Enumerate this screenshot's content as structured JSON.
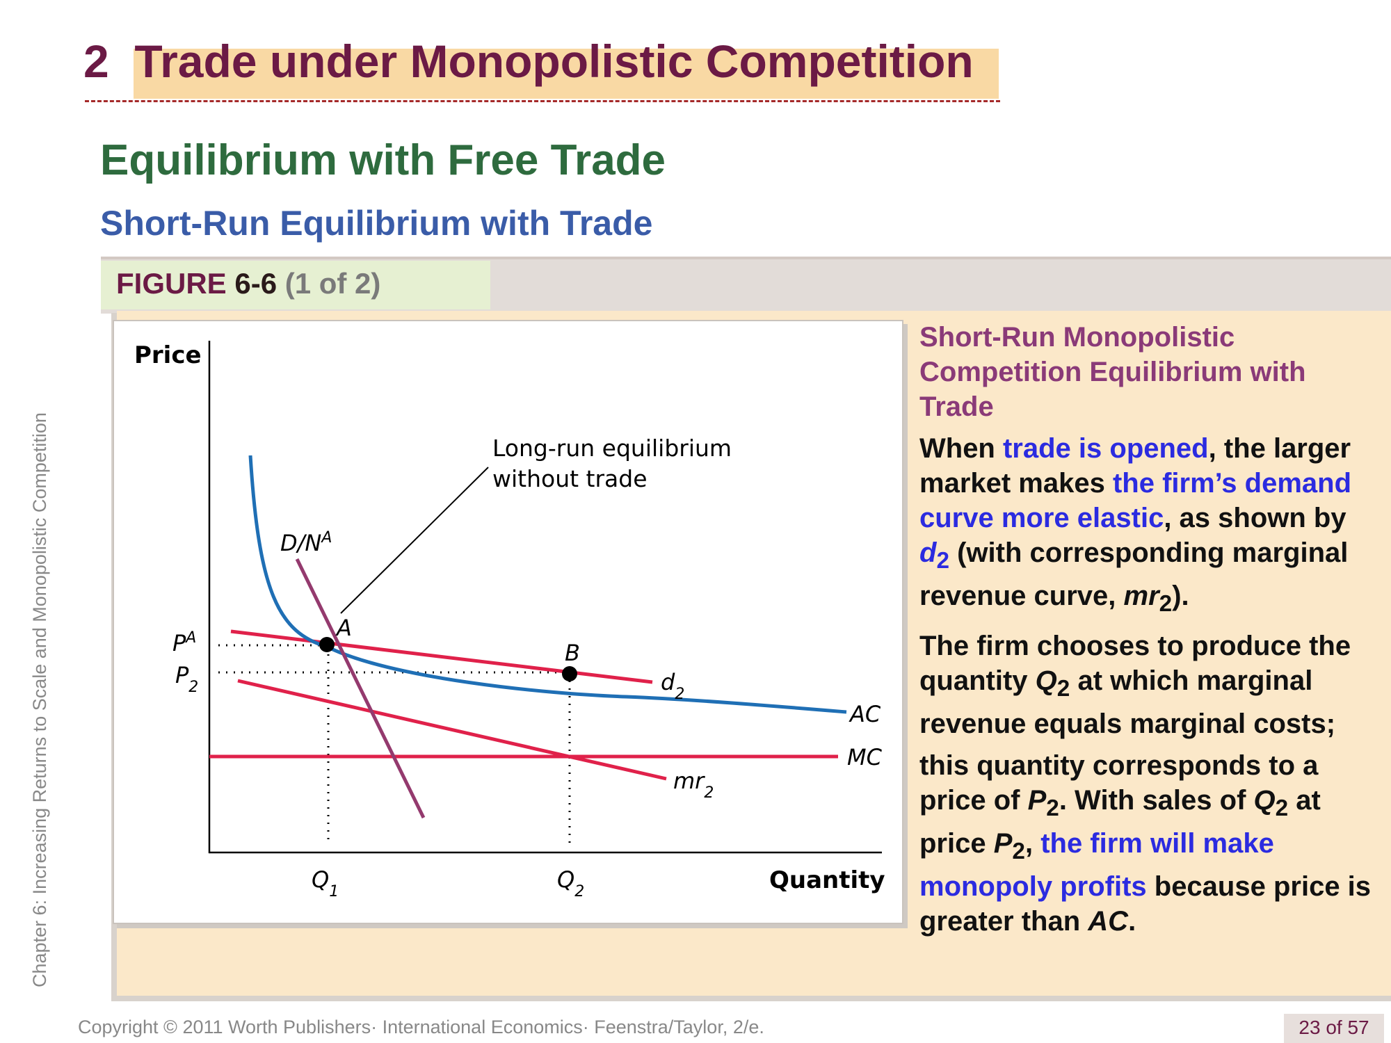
{
  "header": {
    "section_number": "2",
    "section_title": "Trade under Monopolistic Competition"
  },
  "heading": "Equilibrium with Free Trade",
  "subheading": "Short-Run Equilibrium with Trade",
  "figure": {
    "label_prefix": "FIGURE",
    "label_number": "6-6",
    "label_part": "(1 of 2)"
  },
  "graph": {
    "y_axis_label": "Price",
    "x_axis_label": "Quantity",
    "annotation": [
      "Long-run equilibrium",
      "without trade"
    ],
    "points": [
      {
        "name": "A",
        "label": "A"
      },
      {
        "name": "B",
        "label": "B"
      }
    ],
    "curves": {
      "demand_base": "D/N",
      "demand_sup": "A",
      "d2_base": "d",
      "d2_sub": "2",
      "ac": "AC",
      "mc": "MC",
      "mr2_base": "mr",
      "mr2_sub": "2"
    },
    "price_ticks": {
      "pa_base": "P",
      "pa_sup": "A",
      "p2_base": "P",
      "p2_sub": "2"
    },
    "quantity_ticks": {
      "q1_base": "Q",
      "q1_sub": "1",
      "q2_base": "Q",
      "q2_sub": "2"
    },
    "colors": {
      "ac": "#1f6fb5",
      "red_curves": "#e0214a",
      "demand": "#943a6e",
      "axis": "#000000"
    }
  },
  "caption": {
    "title": "Short-Run Monopolistic Competition Equilibrium with Trade",
    "p1": {
      "t1": "When ",
      "h1": "trade is opened",
      "t2": ", the larger market makes ",
      "h2": "the firm’s demand curve more elastic",
      "t3": ", as shown by ",
      "h3": "d",
      "h3_sub": "2",
      "t4": " (with corresponding marginal revenue curve, ",
      "i1": "mr",
      "i1_sub": "2",
      "t5": ")."
    },
    "p2": {
      "t1": "The firm chooses to produce the quantity ",
      "i1": "Q",
      "i1_sub": "2",
      "t2": " at which marginal revenue equals marginal costs;"
    },
    "p3": {
      "t1": "this quantity corresponds to a price of ",
      "i1": "P",
      "i1_sub": "2",
      "t2": ". With sales of ",
      "i2": "Q",
      "i2_sub": "2",
      "t3": " at price ",
      "i3": "P",
      "i3_sub": "2",
      "t4": ", ",
      "h1": "the firm will make monopoly profits",
      "t5": " because price is greater than ",
      "i4": "AC",
      "t6": "."
    }
  },
  "side_text": "Chapter 6: Increasing Returns to Scale and Monopolistic Competition",
  "footer": "Copyright © 2011 Worth Publishers· International Economics· Feenstra/Taylor, 2/e.",
  "page_number": "23 of 57"
}
